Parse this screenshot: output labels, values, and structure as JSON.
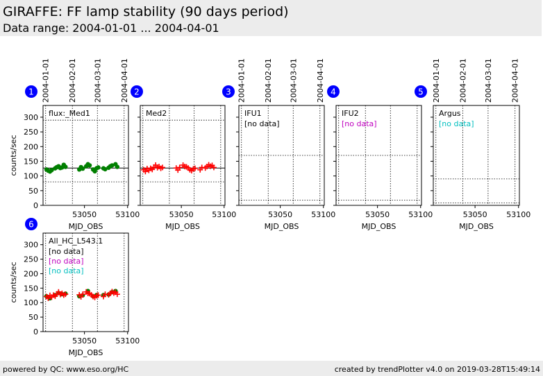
{
  "header": {
    "title": "GIRAFFE: FF lamp stability (90 days period)",
    "subtitle": "Data range: 2004-01-01 ... 2004-04-01"
  },
  "footer": {
    "left": "powered by QC: www.eso.org/HC",
    "right": "created by trendPlotter v4.0 on 2019-03-28T15:49:14"
  },
  "colors": {
    "green": "#007f00",
    "red": "#ff0000",
    "magenta": "#bf00bf",
    "cyan": "#00bfbf",
    "badge": "#0000ff"
  },
  "chart_data": {
    "type": "scatter",
    "x_axis_label": "MJD_OBS",
    "y_axis_label": "counts/sec",
    "xlim": [
      53002,
      53101
    ],
    "ylim": [
      0,
      340
    ],
    "xticks": [
      53050,
      53100
    ],
    "yticks": [
      0,
      50,
      100,
      150,
      200,
      250,
      300
    ],
    "date_ticks": [
      {
        "mjd": 53005,
        "label": "2004-01-01"
      },
      {
        "mjd": 53036,
        "label": "2004-02-01"
      },
      {
        "mjd": 53065,
        "label": "2004-03-01"
      },
      {
        "mjd": 53096,
        "label": "2004-04-01"
      }
    ],
    "panels": [
      {
        "id": "1",
        "label": "flux:_Med1",
        "notes": [],
        "ref_lines": [
          290,
          80
        ],
        "mean_line": 127,
        "series": [
          {
            "marker": "dot",
            "color": "green",
            "x": [
              53006,
              53008,
              53010,
              53012,
              53016,
              53018,
              53020,
              53022,
              53024,
              53026,
              53028,
              53044,
              53046,
              53048,
              53052,
              53054,
              53056,
              53060,
              53062,
              53064,
              53066,
              53072,
              53074,
              53078,
              53080,
              53082,
              53086,
              53088
            ],
            "y": [
              122,
              118,
              115,
              120,
              126,
              130,
              133,
              127,
              129,
              138,
              131,
              122,
              130,
              125,
              133,
              140,
              136,
              122,
              116,
              126,
              129,
              126,
              123,
              128,
              133,
              136,
              140,
              131
            ]
          }
        ]
      },
      {
        "id": "2",
        "label": "Med2",
        "notes": [],
        "ref_lines": [
          290,
          80
        ],
        "mean_line": 127,
        "series": [
          {
            "marker": "plus",
            "color": "red",
            "x": [
              53006,
              53008,
              53010,
              53012,
              53014,
              53016,
              53018,
              53020,
              53022,
              53024,
              53026,
              53028,
              53044,
              53046,
              53048,
              53052,
              53054,
              53056,
              53058,
              53060,
              53062,
              53064,
              53066,
              53072,
              53074,
              53078,
              53080,
              53082,
              53084,
              53086,
              53088
            ],
            "y": [
              121,
              115,
              125,
              119,
              126,
              122,
              130,
              137,
              128,
              132,
              126,
              129,
              127,
              120,
              129,
              137,
              132,
              131,
              127,
              121,
              118,
              124,
              126,
              121,
              129,
              127,
              132,
              138,
              133,
              136,
              129
            ]
          }
        ]
      },
      {
        "id": "3",
        "label": "IFU1",
        "notes": [
          {
            "text": "[no data]",
            "color": "black"
          }
        ],
        "ref_lines": [
          170,
          18
        ],
        "mean_line": null,
        "series": []
      },
      {
        "id": "4",
        "label": "IFU2",
        "notes": [
          {
            "text": "[no data]",
            "color": "magenta"
          }
        ],
        "ref_lines": [
          170,
          18
        ],
        "mean_line": null,
        "series": []
      },
      {
        "id": "5",
        "label": "Argus",
        "notes": [
          {
            "text": "[no data]",
            "color": "cyan"
          }
        ],
        "ref_lines": [
          90,
          8
        ],
        "mean_line": null,
        "series": []
      },
      {
        "id": "6",
        "label": "All_HC_L543.1",
        "notes": [
          {
            "text": "[no data]",
            "color": "black"
          },
          {
            "text": "[no data]",
            "color": "magenta"
          },
          {
            "text": "[no data]",
            "color": "cyan"
          }
        ],
        "ref_lines": [],
        "mean_line": null,
        "series": [
          {
            "marker": "dot",
            "color": "green",
            "x": [
              53006,
              53010,
              53016,
              53020,
              53024,
              53028,
              53044,
              53048,
              53054,
              53060,
              53064,
              53072,
              53078,
              53082,
              53086
            ],
            "y": [
              122,
              115,
              126,
              133,
              129,
              131,
              122,
              125,
              140,
              122,
              126,
              126,
              128,
              136,
              140
            ]
          },
          {
            "marker": "plus",
            "color": "red",
            "x": [
              53006,
              53008,
              53010,
              53012,
              53014,
              53016,
              53018,
              53020,
              53022,
              53024,
              53026,
              53028,
              53044,
              53046,
              53048,
              53052,
              53054,
              53056,
              53058,
              53060,
              53062,
              53064,
              53066,
              53072,
              53074,
              53078,
              53080,
              53082,
              53084,
              53086,
              53088
            ],
            "y": [
              121,
              115,
              125,
              119,
              126,
              122,
              130,
              137,
              128,
              132,
              126,
              129,
              127,
              120,
              129,
              137,
              132,
              131,
              127,
              121,
              118,
              124,
              126,
              121,
              129,
              127,
              132,
              138,
              133,
              136,
              129
            ]
          }
        ]
      }
    ]
  }
}
